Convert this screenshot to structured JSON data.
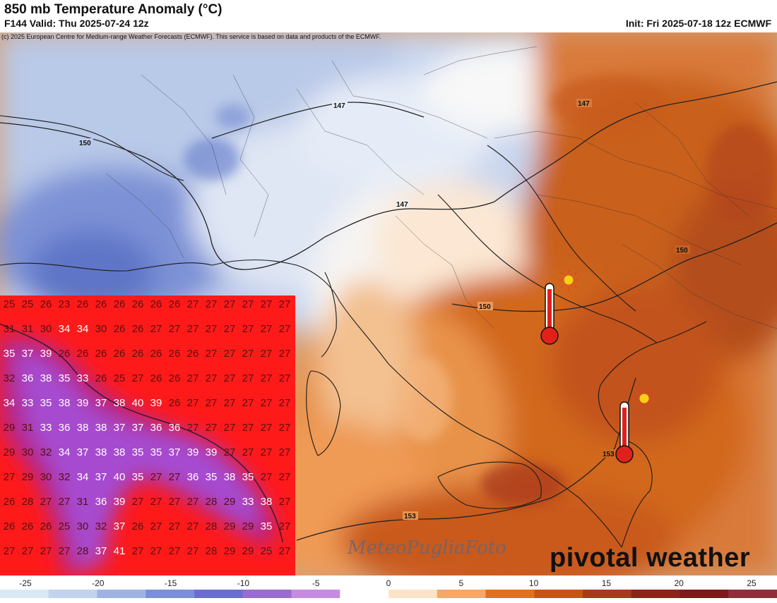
{
  "header": {
    "title": "850 mb Temperature Anomaly (°C)",
    "valid": "F144 Valid: Thu 2025-07-24 12z",
    "init": "Init: Fri 2025-07-18 12z ECMWF",
    "copyright": "(c) 2025 European Centre for Medium-range Weather Forecasts (ECMWF). This service is based on data and products of the ECMWF."
  },
  "contours": {
    "labels": [
      "147",
      "147",
      "150",
      "147",
      "150",
      "150",
      "153",
      "153"
    ]
  },
  "colorbar": {
    "ticks": [
      "-25",
      "-20",
      "-15",
      "-10",
      "-5",
      "0",
      "5",
      "10",
      "15",
      "20",
      "25"
    ],
    "colors": [
      "#d9e8f5",
      "#c2d3ee",
      "#9fb3e3",
      "#7b8fd6",
      "#6b6fcc",
      "#9a6ccd",
      "#c68be0",
      "#ffffff",
      "#fce3c7",
      "#f5a867",
      "#e2701f",
      "#c9521a",
      "#a8391c",
      "#8a2619",
      "#7a1b1a",
      "#8d2f3a"
    ]
  },
  "inset": {
    "rows": [
      [
        "25",
        "25",
        "26",
        "23",
        "26",
        "26",
        "26",
        "26",
        "26",
        "26",
        "27",
        "27",
        "27",
        "27",
        "27",
        "27"
      ],
      [
        "31",
        "31",
        "30",
        "34",
        "34",
        "30",
        "26",
        "26",
        "27",
        "27",
        "27",
        "27",
        "27",
        "27",
        "27",
        "27"
      ],
      [
        "35",
        "37",
        "39",
        "26",
        "26",
        "26",
        "26",
        "26",
        "26",
        "26",
        "26",
        "27",
        "27",
        "27",
        "27",
        "27"
      ],
      [
        "32",
        "36",
        "38",
        "35",
        "33",
        "26",
        "25",
        "27",
        "26",
        "26",
        "27",
        "27",
        "27",
        "27",
        "27",
        "27"
      ],
      [
        "34",
        "33",
        "35",
        "38",
        "39",
        "37",
        "38",
        "40",
        "39",
        "26",
        "27",
        "27",
        "27",
        "27",
        "27",
        "27"
      ],
      [
        "29",
        "31",
        "33",
        "36",
        "38",
        "38",
        "37",
        "37",
        "36",
        "36",
        "27",
        "27",
        "27",
        "27",
        "27",
        "27"
      ],
      [
        "29",
        "30",
        "32",
        "34",
        "37",
        "38",
        "38",
        "35",
        "35",
        "37",
        "39",
        "39",
        "27",
        "27",
        "27",
        "27"
      ],
      [
        "27",
        "29",
        "30",
        "32",
        "34",
        "37",
        "40",
        "35",
        "27",
        "27",
        "36",
        "35",
        "38",
        "35",
        "27",
        "27"
      ],
      [
        "26",
        "28",
        "27",
        "27",
        "31",
        "36",
        "39",
        "27",
        "27",
        "27",
        "27",
        "28",
        "29",
        "33",
        "38",
        "27"
      ],
      [
        "26",
        "26",
        "26",
        "25",
        "30",
        "32",
        "37",
        "26",
        "27",
        "27",
        "27",
        "28",
        "29",
        "29",
        "35",
        "27"
      ],
      [
        "27",
        "27",
        "27",
        "27",
        "28",
        "37",
        "41",
        "27",
        "27",
        "27",
        "27",
        "28",
        "29",
        "29",
        "25",
        "27"
      ]
    ],
    "hot_threshold": 33
  },
  "watermark": {
    "logo": "pivotal weather",
    "signature": "MeteoPugliaFoto"
  }
}
